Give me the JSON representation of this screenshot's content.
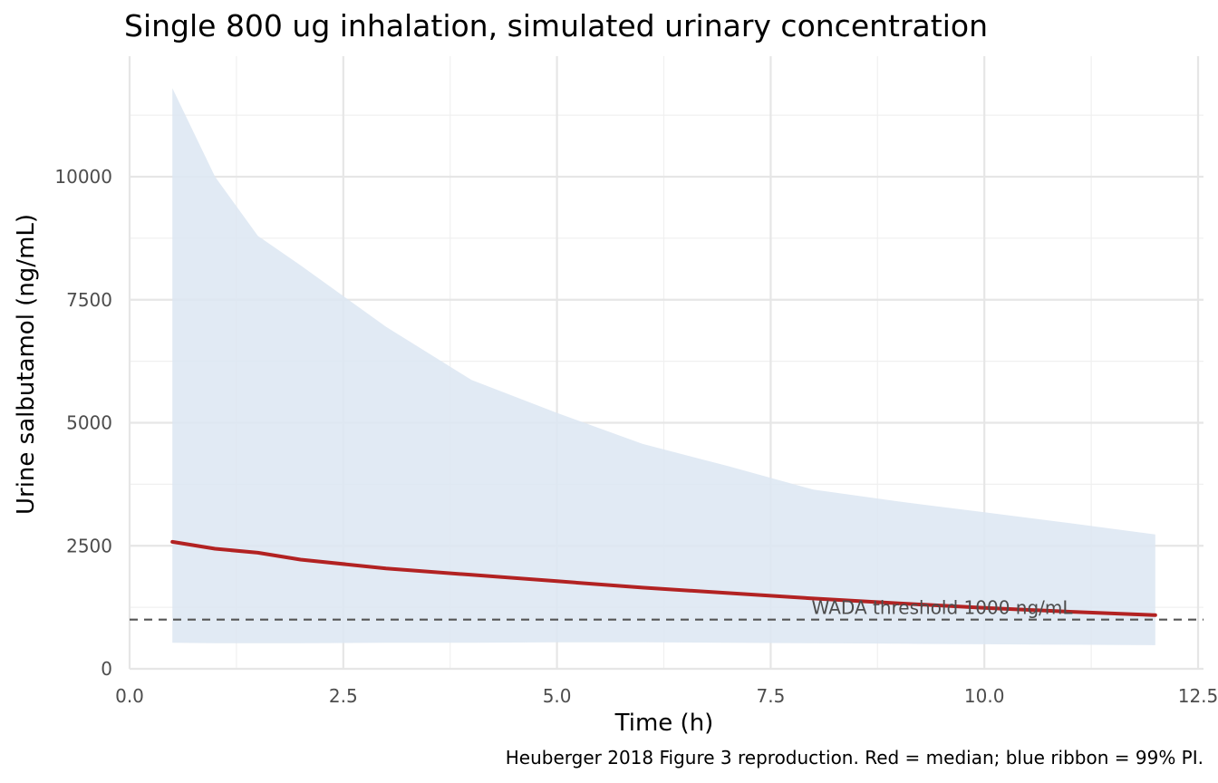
{
  "chart_data": {
    "type": "line",
    "title": "Single 800 ug inhalation, simulated urinary concentration",
    "xlabel": "Time (h)",
    "ylabel": "Urine salbutamol (ng/mL)",
    "caption": "Heuberger 2018 Figure 3 reproduction. Red = median; blue ribbon = 99% PI.",
    "xlim": [
      0,
      12.5
    ],
    "ylim": [
      0,
      12000
    ],
    "x_ticks": [
      0,
      2.5,
      5,
      7.5,
      10,
      12.5
    ],
    "x_tick_labels": [
      "0.0",
      "2.5",
      "5.0",
      "7.5",
      "10.0",
      "12.5"
    ],
    "y_ticks": [
      0,
      2500,
      5000,
      7500,
      10000
    ],
    "y_tick_labels": [
      "0",
      "2500",
      "5000",
      "7500",
      "10000"
    ],
    "grid": true,
    "x": [
      0.5,
      1,
      1.5,
      2,
      3,
      4,
      5,
      6,
      7,
      8,
      9,
      10,
      11,
      12
    ],
    "series": [
      {
        "name": "median",
        "color": "#b22222",
        "values": [
          2580,
          2440,
          2360,
          2220,
          2040,
          1910,
          1780,
          1650,
          1540,
          1430,
          1330,
          1240,
          1160,
          1090
        ]
      }
    ],
    "ribbon": {
      "label": "99% PI",
      "color": "#dce6f2",
      "upper": [
        11800,
        10000,
        8800,
        8200,
        6950,
        5870,
        5200,
        4570,
        4120,
        3640,
        3400,
        3180,
        2960,
        2730
      ],
      "lower": [
        530,
        520,
        520,
        520,
        530,
        530,
        540,
        540,
        530,
        520,
        510,
        500,
        490,
        480
      ]
    },
    "threshold": {
      "value": 1000,
      "label": "WADA threshold 1000 ng/mL",
      "label_x": 8,
      "color": "#555555"
    }
  }
}
